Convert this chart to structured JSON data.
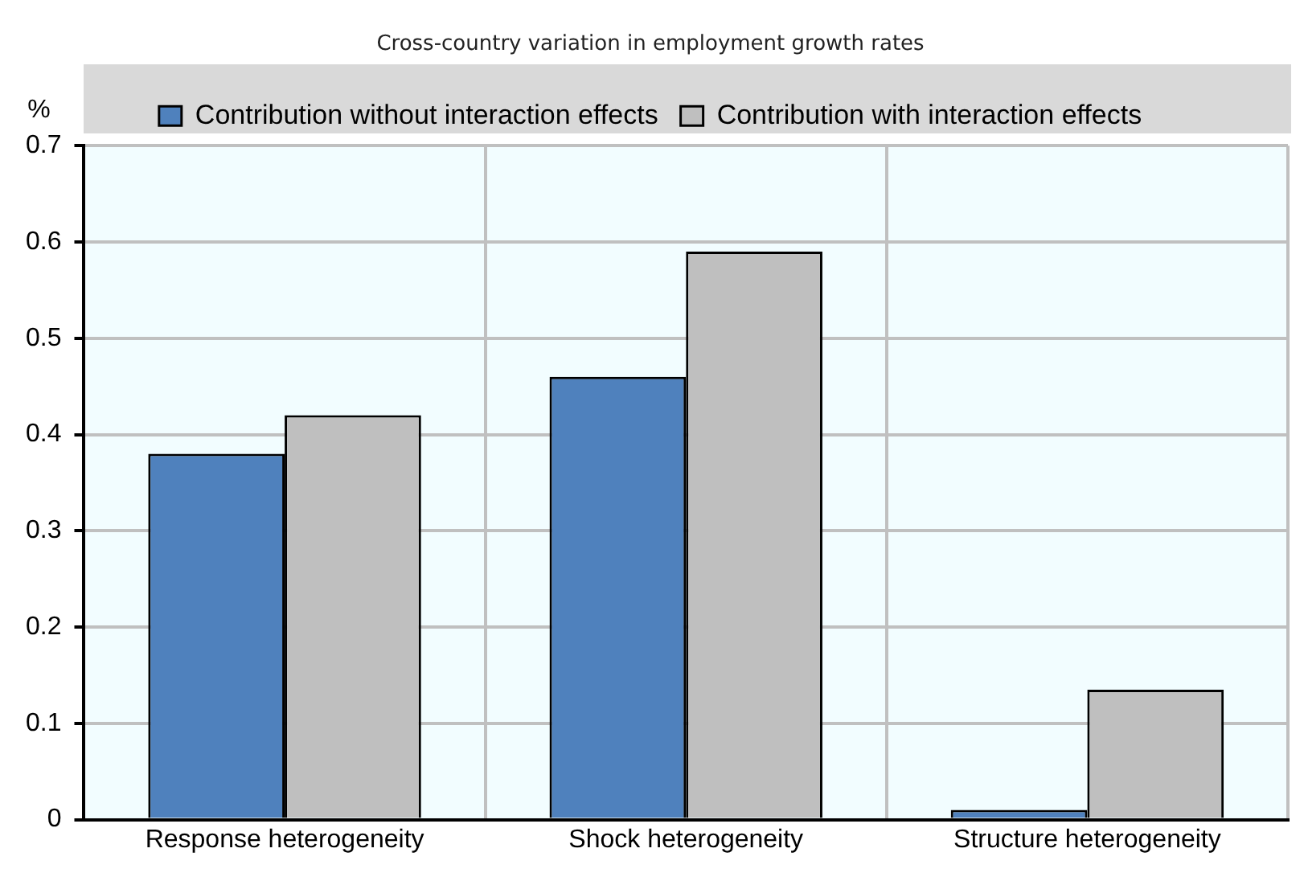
{
  "chart_data": {
    "type": "bar",
    "title": "Cross-country variation in employment growth rates",
    "ylabel": "%",
    "categories": [
      "Response heterogeneity",
      "Shock heterogeneity",
      "Structure heterogeneity"
    ],
    "series": [
      {
        "name": "Contribution without interaction effects",
        "color": "#4f81bd",
        "values": [
          0.38,
          0.46,
          0.01
        ]
      },
      {
        "name": "Contribution with interaction effects",
        "color": "#bfbfbf",
        "values": [
          0.42,
          0.59,
          0.135
        ]
      }
    ],
    "ylim": [
      0,
      0.7
    ],
    "yticks": [
      0,
      0.1,
      0.2,
      0.3,
      0.4,
      0.5,
      0.6,
      0.7
    ],
    "grid": true,
    "legend": "top"
  }
}
